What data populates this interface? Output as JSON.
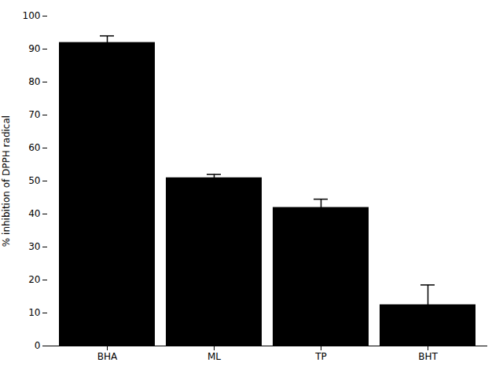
{
  "chart_data": {
    "type": "bar",
    "categories": [
      "BHA",
      "ML",
      "TP",
      "BHT"
    ],
    "values": [
      92.0,
      51.0,
      42.0,
      12.5
    ],
    "errors": [
      2.0,
      1.0,
      2.5,
      6.0
    ],
    "ylabel": "% inhibition of DPPH radical",
    "ylim": [
      0,
      100
    ],
    "yticks": [
      0,
      10,
      20,
      30,
      40,
      50,
      60,
      70,
      80,
      90,
      100
    ],
    "grid": false
  }
}
